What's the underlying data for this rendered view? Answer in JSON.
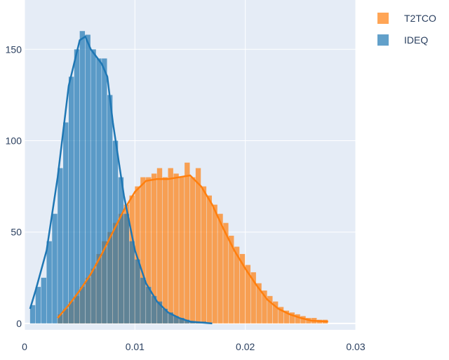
{
  "chart_data": {
    "type": "histogram",
    "xlim": [
      0,
      0.03
    ],
    "ylim": [
      -3.5,
      177
    ],
    "xticks": [
      0,
      0.01,
      0.02,
      0.03
    ],
    "yticks": [
      0,
      50,
      100,
      150
    ],
    "grid": true,
    "legend": "top-right",
    "series": [
      {
        "name": "T2TCO",
        "color": "#ff7f0e",
        "bins": [
          0.003,
          0.0035,
          0.004,
          0.0045,
          0.005,
          0.0055,
          0.006,
          0.0065,
          0.007,
          0.0075,
          0.008,
          0.0085,
          0.009,
          0.0095,
          0.01,
          0.0105,
          0.011,
          0.0115,
          0.012,
          0.0125,
          0.013,
          0.0135,
          0.014,
          0.0145,
          0.015,
          0.0155,
          0.016,
          0.0165,
          0.017,
          0.0175,
          0.018,
          0.0185,
          0.019,
          0.0195,
          0.02,
          0.0205,
          0.021,
          0.0215,
          0.022,
          0.0225,
          0.023,
          0.0235,
          0.024,
          0.0245,
          0.025,
          0.0255,
          0.026,
          0.0265,
          0.027,
          0.0275
        ],
        "counts": [
          5,
          8,
          12,
          15,
          20,
          25,
          30,
          38,
          45,
          50,
          55,
          60,
          65,
          70,
          75,
          80,
          80,
          82,
          85,
          80,
          85,
          82,
          80,
          88,
          80,
          85,
          75,
          70,
          65,
          60,
          55,
          48,
          42,
          38,
          32,
          28,
          22,
          18,
          15,
          12,
          9,
          7,
          6,
          5,
          4,
          3,
          3,
          2,
          2
        ],
        "kde_x": [
          0.003,
          0.004,
          0.005,
          0.006,
          0.007,
          0.008,
          0.009,
          0.01,
          0.011,
          0.012,
          0.013,
          0.014,
          0.015,
          0.016,
          0.017,
          0.018,
          0.019,
          0.02,
          0.021,
          0.022,
          0.023,
          0.024,
          0.025,
          0.026,
          0.0275
        ],
        "kde_y": [
          3,
          10,
          18,
          27,
          38,
          50,
          62,
          72,
          78,
          79,
          79,
          80,
          81,
          75,
          65,
          52,
          40,
          30,
          21,
          13,
          8,
          5,
          3,
          1.5,
          1
        ]
      },
      {
        "name": "IDEQ",
        "color": "#1f77b4",
        "bins": [
          0.0005,
          0.001,
          0.0015,
          0.002,
          0.0025,
          0.003,
          0.0035,
          0.004,
          0.0045,
          0.005,
          0.0055,
          0.006,
          0.0065,
          0.007,
          0.0075,
          0.008,
          0.0085,
          0.009,
          0.0095,
          0.01,
          0.0105,
          0.011,
          0.0115,
          0.012,
          0.0125,
          0.013,
          0.0135,
          0.014,
          0.0145,
          0.015,
          0.0155,
          0.016,
          0.0165
        ],
        "counts": [
          10,
          20,
          25,
          45,
          60,
          85,
          110,
          135,
          150,
          160,
          158,
          150,
          145,
          145,
          125,
          100,
          80,
          60,
          45,
          35,
          25,
          20,
          15,
          12,
          8,
          6,
          4,
          3,
          2,
          1,
          1,
          1
        ],
        "kde_x": [
          0.0005,
          0.001,
          0.002,
          0.003,
          0.004,
          0.005,
          0.0055,
          0.006,
          0.007,
          0.0075,
          0.008,
          0.009,
          0.01,
          0.011,
          0.012,
          0.013,
          0.014,
          0.015,
          0.016,
          0.017
        ],
        "kde_y": [
          8,
          18,
          40,
          80,
          130,
          155,
          157,
          150,
          142,
          135,
          110,
          70,
          40,
          22,
          12,
          6,
          3,
          1,
          0.5,
          0
        ]
      }
    ]
  }
}
